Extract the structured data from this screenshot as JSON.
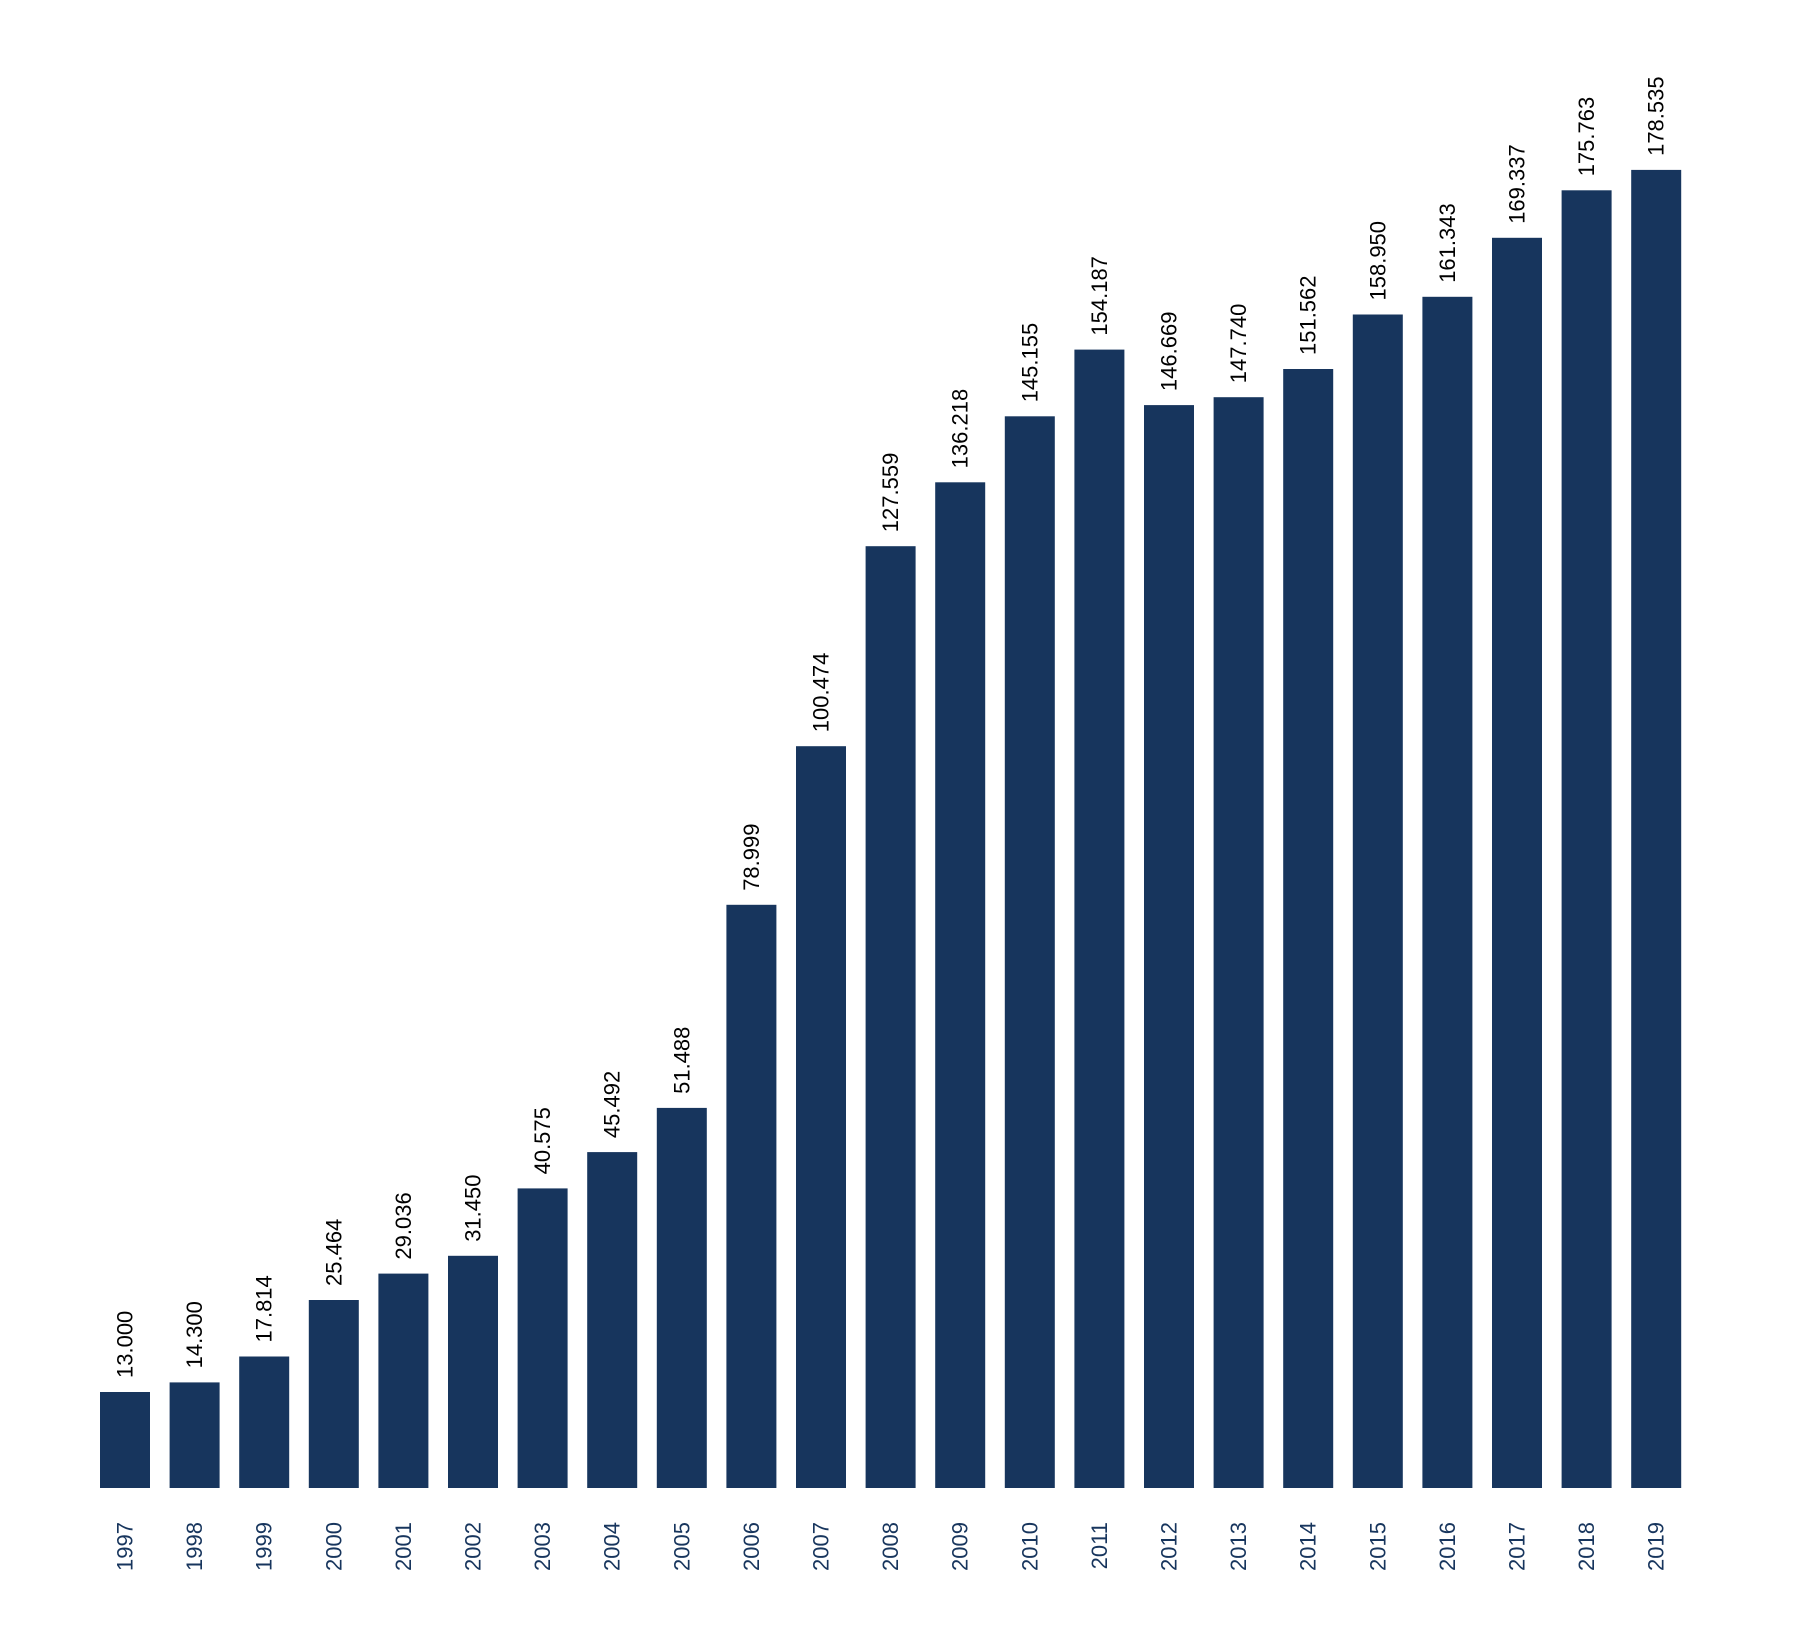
{
  "colors": {
    "bar": "#17355d",
    "tick_label": "#17355d",
    "value_label": "#000000",
    "background": "#ffffff"
  },
  "chart_data": {
    "type": "bar",
    "orientation": "vertical",
    "title": "",
    "xlabel": "",
    "ylabel": "",
    "categories": [
      "1997",
      "1998",
      "1999",
      "2000",
      "2001",
      "2002",
      "2003",
      "2004",
      "2005",
      "2006",
      "2007",
      "2008",
      "2009",
      "2010",
      "2011",
      "2012",
      "2013",
      "2014",
      "2015",
      "2016",
      "2017",
      "2018",
      "2019"
    ],
    "values": [
      13.0,
      14.3,
      17.814,
      25.464,
      29.036,
      31.45,
      40.575,
      45.492,
      51.488,
      78.999,
      100.474,
      127.559,
      136.218,
      145.155,
      154.187,
      146.669,
      147.74,
      151.562,
      158.95,
      161.343,
      169.337,
      175.763,
      178.535
    ],
    "value_labels": [
      "13.000",
      "14.300",
      "17.814",
      "25.464",
      "29.036",
      "31.450",
      "40.575",
      "45.492",
      "51.488",
      "78.999",
      "100.474",
      "127.559",
      "136.218",
      "145.155",
      "154.187",
      "146.669",
      "147.740",
      "151.562",
      "158.950",
      "161.343",
      "169.337",
      "175.763",
      "178.535"
    ],
    "ylim": [
      0,
      185
    ],
    "grid": false,
    "legend": "none",
    "y_axis_visible": false,
    "label_rotation": "vertical"
  }
}
